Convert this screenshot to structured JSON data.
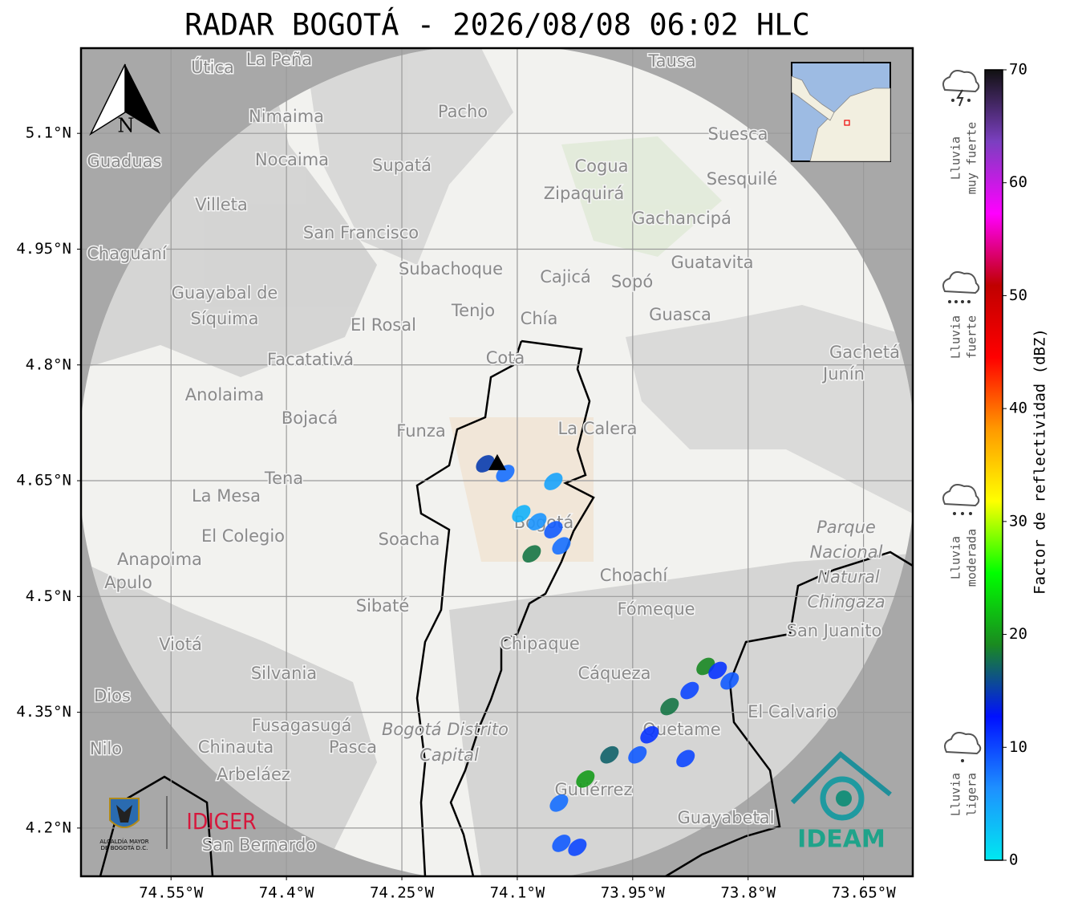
{
  "title": "RADAR BOGOTÁ - 2026/08/08 06:02 HLC",
  "north_label": "N",
  "map": {
    "xlim": [
      -74.667,
      -73.586
    ],
    "ylim": [
      4.1375,
      5.2104
    ],
    "grid": true,
    "xticks": [
      {
        "value": -74.55,
        "label": "74.55°W"
      },
      {
        "value": -74.4,
        "label": "74.4°W"
      },
      {
        "value": -74.25,
        "label": "74.25°W"
      },
      {
        "value": -74.1,
        "label": "74.1°W"
      },
      {
        "value": -73.95,
        "label": "73.95°W"
      },
      {
        "value": -73.8,
        "label": "73.8°W"
      },
      {
        "value": -73.65,
        "label": "73.65°W"
      }
    ],
    "yticks": [
      {
        "value": 4.2,
        "label": "4.2°N"
      },
      {
        "value": 4.35,
        "label": "4.35°N"
      },
      {
        "value": 4.5,
        "label": "4.5°N"
      },
      {
        "value": 4.65,
        "label": "4.65°N"
      },
      {
        "value": 4.8,
        "label": "4.8°N"
      },
      {
        "value": 4.95,
        "label": "4.95°N"
      },
      {
        "value": 5.1,
        "label": "5.1°N"
      }
    ],
    "radar_site": {
      "lon": -74.126,
      "lat": 4.673
    },
    "places": [
      "La Peña",
      "Útica",
      "Tausa",
      "Pacho",
      "Nimaima",
      "Guaduas",
      "Nocaima",
      "Supatá",
      "Suesca",
      "Cogua",
      "Sesquilé",
      "Zipaquirá",
      "Villeta",
      "Gachancipá",
      "San Francisco",
      "Chaguaní",
      "Guatavita",
      "Subachoque",
      "Cajicá",
      "Sopó",
      "Guayabal de",
      "Síquima",
      "Tenjo",
      "Guasca",
      "Chía",
      "El Rosal",
      "Gachetá",
      "Junín",
      "Facatativá",
      "Cota",
      "Anolaima",
      "Bojacá",
      "Funza",
      "La Calera",
      "Tena",
      "La Mesa",
      "Bogotá",
      "Soacha",
      "El Colegio",
      "Anapoima",
      "Apulo",
      "Choachí",
      "Fómeque",
      "Sibaté",
      "San Juanito",
      "Viotá",
      "Chipaque",
      "Silvania",
      "Cáqueza",
      "El Calvario",
      "Fusagasugá",
      "Quetame",
      "Nilo",
      "Chinauta",
      "Pasca",
      "Arbeláez",
      "Gutiérrez",
      "Guayabetal",
      "San Bernardo",
      "Bogotá Distrito",
      "Capital",
      "Parque",
      "Nacional",
      "Natural",
      "Chingaza",
      "Dios"
    ],
    "echoes": {
      "lon": [
        -74.1417,
        -74.1156,
        -74.0531,
        -74.0948,
        -74.074,
        -74.0531,
        -74.0427,
        -74.0813,
        -74.0427,
        -74.0219,
        -74.0458,
        -74.0115,
        -73.9802,
        -73.9438,
        -73.9281,
        -73.9021,
        -73.876,
        -73.8552,
        -73.8396,
        -73.824,
        -73.8813
      ],
      "lat": [
        4.6719,
        4.6594,
        4.649,
        4.6073,
        4.5969,
        4.5865,
        4.5656,
        4.5552,
        4.1802,
        4.175,
        4.2323,
        4.2635,
        4.2948,
        4.2948,
        4.3208,
        4.3573,
        4.3781,
        4.4094,
        4.4042,
        4.3906,
        4.29
      ],
      "dbz": [
        15,
        8,
        5,
        4,
        6,
        9,
        8,
        18,
        9,
        10,
        8,
        20,
        17,
        9,
        11,
        18,
        10,
        19,
        11,
        9,
        10
      ]
    }
  },
  "colorbar": {
    "label": "Factor de reflectividad (dBZ)",
    "lim": [
      0,
      70
    ],
    "ticks": [
      0,
      10,
      20,
      30,
      40,
      50,
      60,
      70
    ],
    "colors": [
      "#00e8f0",
      "#1e90ff",
      "#0010ff",
      "#1a8a20",
      "#00ff00",
      "#ffff00",
      "#ff9900",
      "#ff0000",
      "#c00000",
      "#ff00ff",
      "#7b3fc0",
      "#111111"
    ]
  },
  "legend": [
    [
      "Lluvia",
      "muy fuerte"
    ],
    [
      "Lluvia",
      "fuerte"
    ],
    [
      "Lluvia",
      "moderada"
    ],
    [
      "Lluvia",
      "ligera"
    ]
  ],
  "logos": {
    "alcaldia": [
      "ALCALDÍA MAYOR",
      "DE BOGOTÁ D.C."
    ],
    "idiger": "IDIGER",
    "ideam": "IDEAM"
  }
}
